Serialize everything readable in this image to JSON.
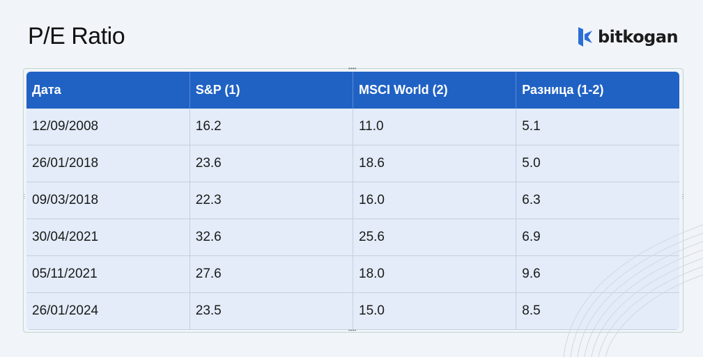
{
  "title": "P/E Ratio",
  "logo": {
    "text": "bitkogan",
    "color": "#2b6fd6"
  },
  "table": {
    "headers": [
      "Дата",
      "S&P (1)",
      "MSCI World (2)",
      "Разница (1-2)"
    ],
    "rows": [
      [
        "12/09/2008",
        "16.2",
        "11.0",
        "5.1"
      ],
      [
        "26/01/2018",
        "23.6",
        "18.6",
        "5.0"
      ],
      [
        "09/03/2018",
        "22.3",
        "16.0",
        "6.3"
      ],
      [
        "30/04/2021",
        "32.6",
        "25.6",
        "6.9"
      ],
      [
        "05/11/2021",
        "27.6",
        "18.0",
        "9.6"
      ],
      [
        "26/01/2024",
        "23.5",
        "15.0",
        "8.5"
      ]
    ]
  },
  "colors": {
    "header": "#2062c4",
    "row": "#e3ecf8",
    "background": "#f1f4f9"
  }
}
